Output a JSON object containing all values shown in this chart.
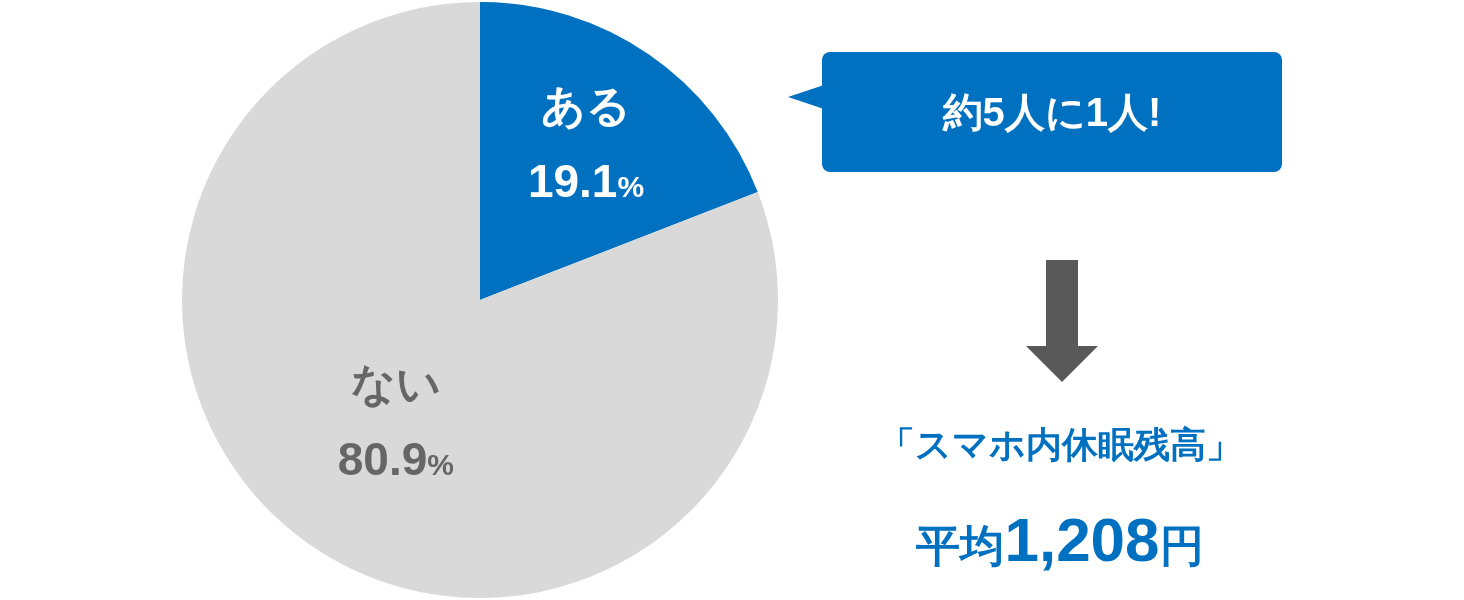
{
  "chart_data": {
    "type": "pie",
    "categories": [
      "ある",
      "ない"
    ],
    "values": [
      19.1,
      80.9
    ],
    "colors": [
      "#0070c0",
      "#d9d9d9"
    ],
    "value_labels": [
      "19.1%",
      "80.9%"
    ],
    "annotations": [
      "約5人に1人!",
      "「スマホ内休眠残高」",
      "平均1,208円"
    ]
  }
}
